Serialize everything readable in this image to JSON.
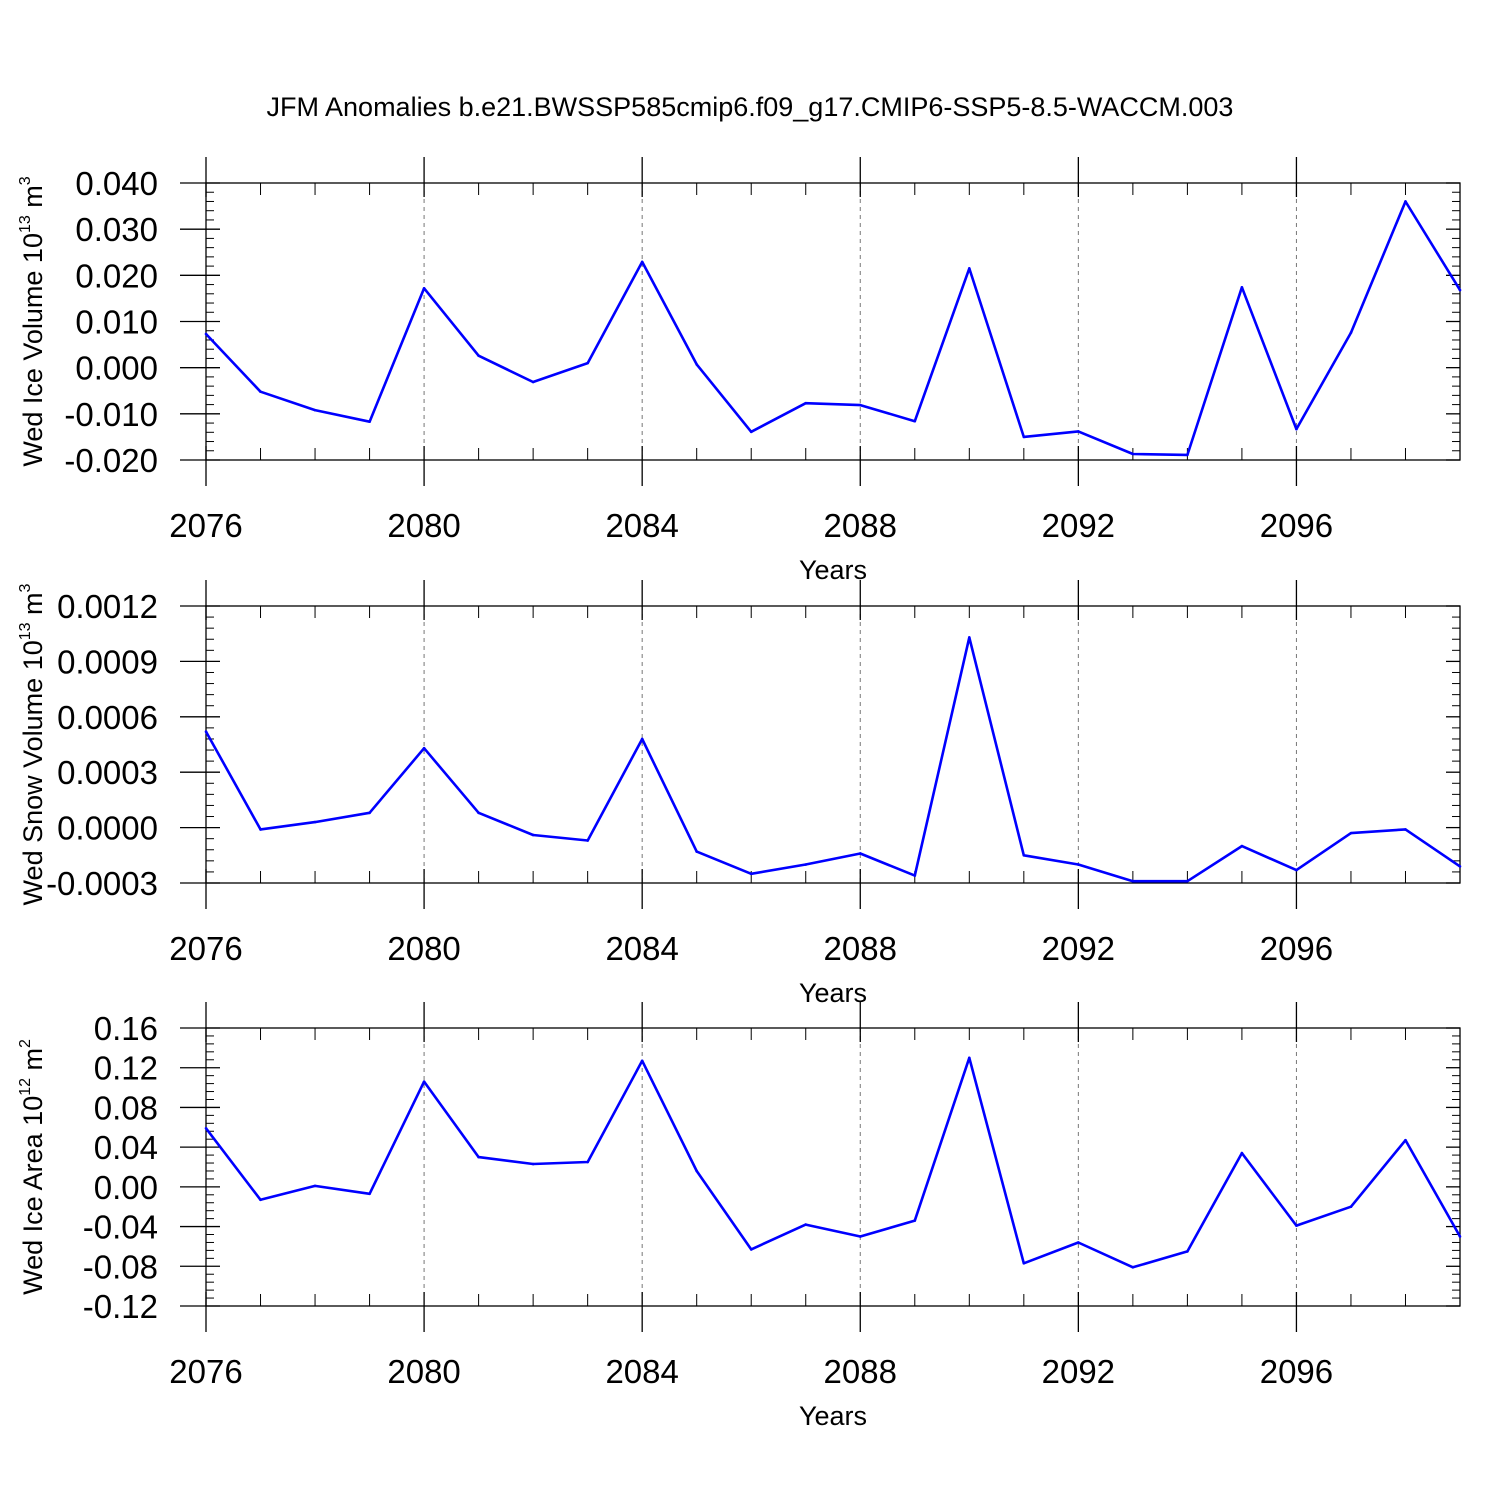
{
  "title": "JFM Anomalies b.e21.BWSSP585cmip6.f09_g17.CMIP6-SSP5-8.5-WACCM.003",
  "colors": {
    "line": "#0000ff",
    "axis": "#000000",
    "grid": "#777777"
  },
  "chart_data": [
    {
      "type": "line",
      "xlabel": "Years",
      "ylabel": {
        "text": "Wed Ice Volume 10",
        "exponent": "13",
        "unit": " m",
        "unit_exponent": "3"
      },
      "xlim": [
        2076,
        2099
      ],
      "ylim": [
        -0.02,
        0.04
      ],
      "xticks": [
        "2076",
        "2080",
        "2084",
        "2088",
        "2092",
        "2096"
      ],
      "yticks": [
        "0.040",
        "0.030",
        "0.020",
        "0.010",
        "0.000",
        "-0.010",
        "-0.020"
      ],
      "ytick_values": [
        0.04,
        0.03,
        0.02,
        0.01,
        0.0,
        -0.01,
        -0.02
      ],
      "x": [
        2076,
        2077,
        2078,
        2079,
        2080,
        2081,
        2082,
        2083,
        2084,
        2085,
        2086,
        2087,
        2088,
        2089,
        2090,
        2091,
        2092,
        2093,
        2094,
        2095,
        2096,
        2097,
        2098,
        2099
      ],
      "values": [
        0.0073,
        -0.0052,
        -0.0092,
        -0.0117,
        0.0172,
        0.0026,
        -0.0031,
        0.001,
        0.0229,
        0.0007,
        -0.0139,
        -0.0077,
        -0.0081,
        -0.0116,
        0.0215,
        -0.015,
        -0.0138,
        -0.0187,
        -0.0189,
        0.0174,
        -0.0133,
        0.0076,
        0.036,
        0.0168
      ]
    },
    {
      "type": "line",
      "xlabel": "Years",
      "ylabel": {
        "text": "Wed Snow Volume 10",
        "exponent": "13",
        "unit": " m",
        "unit_exponent": "3"
      },
      "xlim": [
        2076,
        2099
      ],
      "ylim": [
        -0.0003,
        0.0012
      ],
      "xticks": [
        "2076",
        "2080",
        "2084",
        "2088",
        "2092",
        "2096"
      ],
      "yticks": [
        "0.0012",
        "0.0009",
        "0.0006",
        "0.0003",
        "0.0000",
        "-0.0003"
      ],
      "ytick_values": [
        0.0012,
        0.0009,
        0.0006,
        0.0003,
        0.0,
        -0.0003
      ],
      "x": [
        2076,
        2077,
        2078,
        2079,
        2080,
        2081,
        2082,
        2083,
        2084,
        2085,
        2086,
        2087,
        2088,
        2089,
        2090,
        2091,
        2092,
        2093,
        2094,
        2095,
        2096,
        2097,
        2098,
        2099
      ],
      "values": [
        0.00052,
        -1e-05,
        3e-05,
        8e-05,
        0.00043,
        8e-05,
        -4e-05,
        -7e-05,
        0.00048,
        -0.00013,
        -0.00025,
        -0.0002,
        -0.00014,
        -0.00026,
        0.00103,
        -0.00015,
        -0.0002,
        -0.00029,
        -0.00029,
        -0.0001,
        -0.00023,
        -3e-05,
        -1e-05,
        -0.00021
      ]
    },
    {
      "type": "line",
      "xlabel": "Years",
      "ylabel": {
        "text": "Wed Ice Area 10",
        "exponent": "12",
        "unit": " m",
        "unit_exponent": "2"
      },
      "xlim": [
        2076,
        2099
      ],
      "ylim": [
        -0.12,
        0.16
      ],
      "xticks": [
        "2076",
        "2080",
        "2084",
        "2088",
        "2092",
        "2096"
      ],
      "yticks": [
        "0.16",
        "0.12",
        "0.08",
        "0.04",
        "0.00",
        "-0.04",
        "-0.08",
        "-0.12"
      ],
      "ytick_values": [
        0.16,
        0.12,
        0.08,
        0.04,
        0.0,
        -0.04,
        -0.08,
        -0.12
      ],
      "x": [
        2076,
        2077,
        2078,
        2079,
        2080,
        2081,
        2082,
        2083,
        2084,
        2085,
        2086,
        2087,
        2088,
        2089,
        2090,
        2091,
        2092,
        2093,
        2094,
        2095,
        2096,
        2097,
        2098,
        2099
      ],
      "values": [
        0.059,
        -0.013,
        0.001,
        -0.007,
        0.106,
        0.03,
        0.023,
        0.025,
        0.127,
        0.016,
        -0.063,
        -0.038,
        -0.05,
        -0.034,
        0.13,
        -0.077,
        -0.056,
        -0.081,
        -0.065,
        0.034,
        -0.039,
        -0.02,
        0.047,
        -0.05
      ]
    }
  ]
}
